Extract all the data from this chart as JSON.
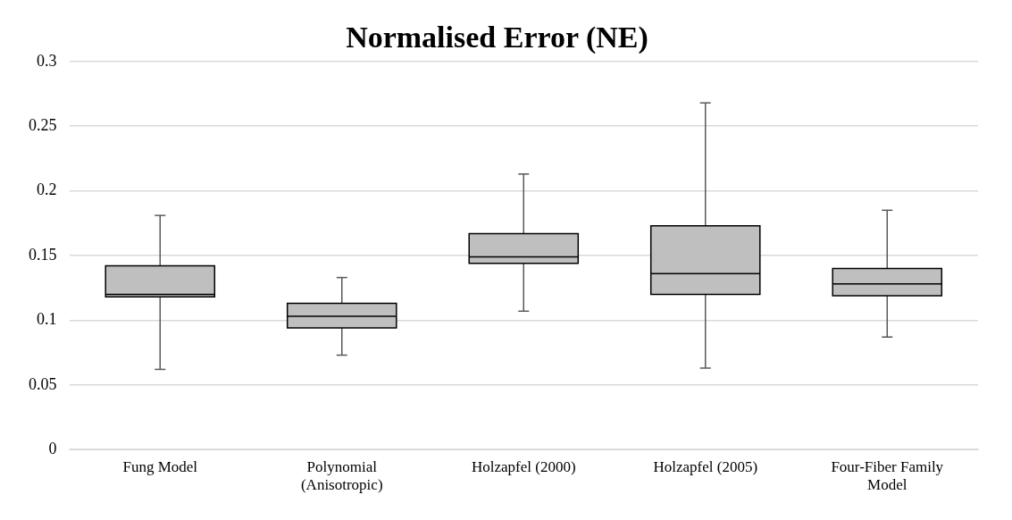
{
  "chart_data": {
    "type": "box",
    "title": "Normalised Error (NE)",
    "categories": [
      "Fung Model",
      "Polynomial (Anisotropic)",
      "Holzapfel (2000)",
      "Holzapfel (2005)",
      "Four-Fiber Family Model"
    ],
    "color": "#bfbfbf",
    "boxes": [
      {
        "low": 0.062,
        "q1": 0.118,
        "median": 0.12,
        "q3": 0.142,
        "high": 0.181
      },
      {
        "low": 0.073,
        "q1": 0.094,
        "median": 0.103,
        "q3": 0.113,
        "high": 0.133
      },
      {
        "low": 0.107,
        "q1": 0.144,
        "median": 0.149,
        "q3": 0.167,
        "high": 0.213
      },
      {
        "low": 0.063,
        "q1": 0.12,
        "median": 0.136,
        "q3": 0.173,
        "high": 0.268
      },
      {
        "low": 0.087,
        "q1": 0.119,
        "median": 0.128,
        "q3": 0.14,
        "high": 0.185
      }
    ],
    "ylim": [
      0,
      0.3
    ],
    "yticks": [
      0,
      0.05,
      0.1,
      0.15,
      0.2,
      0.25,
      0.3
    ],
    "grid": "y",
    "legend": false
  }
}
